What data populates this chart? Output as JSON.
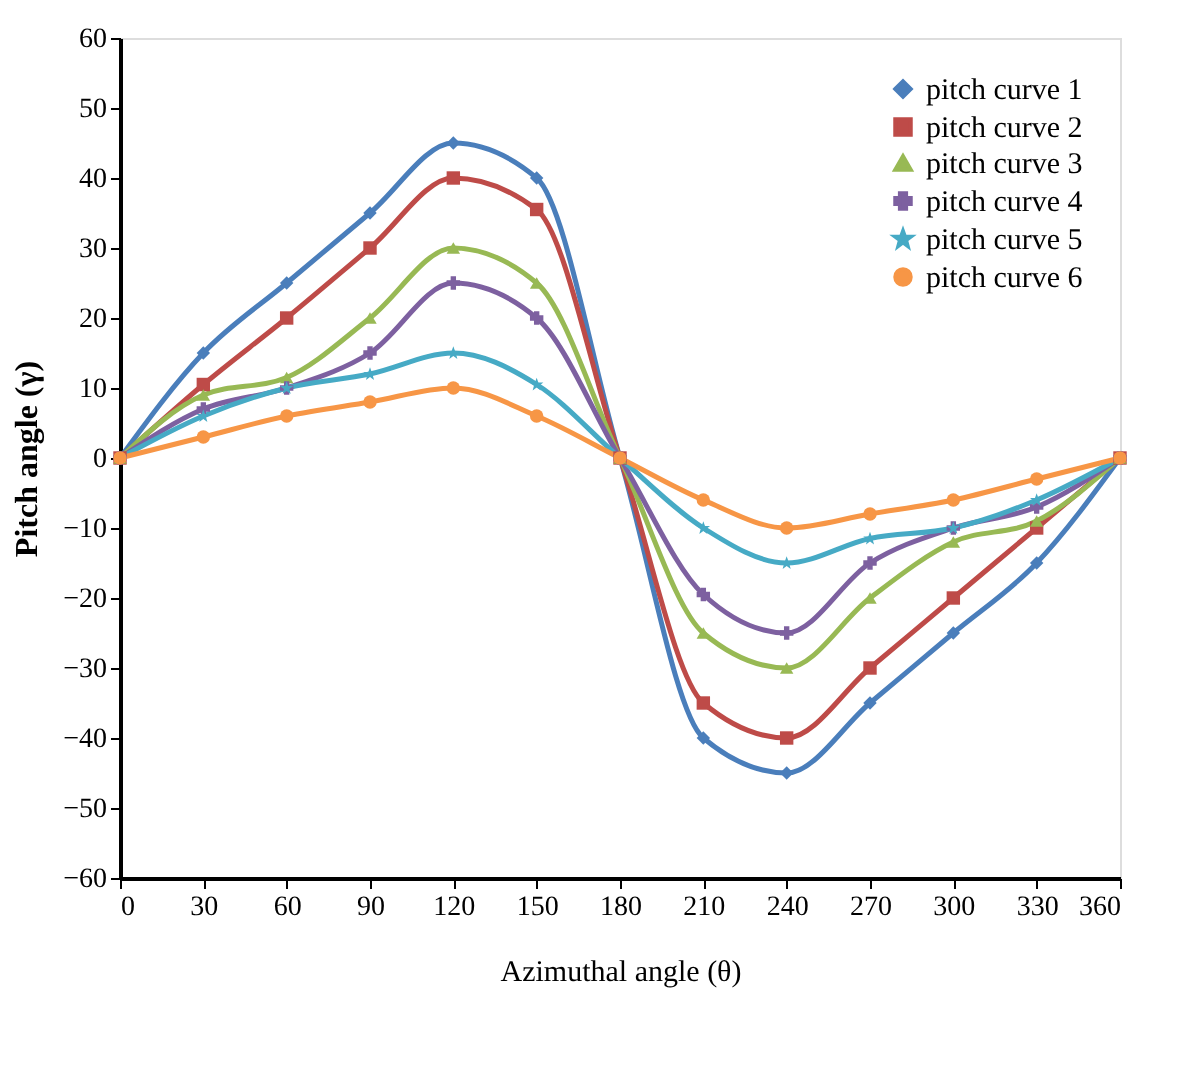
{
  "chart_data": {
    "type": "line",
    "xlabel": "Azimuthal angle (θ)",
    "ylabel": "Pitch angle (γ)",
    "x": [
      0,
      30,
      60,
      90,
      120,
      150,
      180,
      210,
      240,
      270,
      300,
      330,
      360
    ],
    "series": [
      {
        "name": "pitch curve 1",
        "color": "#4a7ebb",
        "marker": "diamond",
        "values": [
          0,
          15,
          25,
          35,
          45,
          40,
          0,
          -40,
          -45,
          -35,
          -25,
          -15,
          0
        ]
      },
      {
        "name": "pitch curve 2",
        "color": "#be4b48",
        "marker": "square",
        "values": [
          0,
          10.5,
          20,
          30,
          40,
          35.5,
          0,
          -35,
          -40,
          -30,
          -20,
          -10,
          0
        ]
      },
      {
        "name": "pitch curve 3",
        "color": "#98b954",
        "marker": "triangle",
        "values": [
          0,
          9,
          11.5,
          20,
          30,
          25,
          0,
          -25,
          -30,
          -20,
          -12,
          -9,
          0
        ]
      },
      {
        "name": "pitch curve 4",
        "color": "#7d60a0",
        "marker": "cross",
        "values": [
          0,
          7,
          10,
          15,
          25,
          20,
          0,
          -19.5,
          -25,
          -15,
          -10,
          -7,
          0
        ]
      },
      {
        "name": "pitch curve 5",
        "color": "#46aac5",
        "marker": "star",
        "values": [
          0,
          6,
          10,
          12,
          15,
          10.5,
          0,
          -10,
          -15,
          -11.5,
          -10,
          -6,
          0
        ]
      },
      {
        "name": "pitch curve 6",
        "color": "#f79646",
        "marker": "circle",
        "values": [
          0,
          3,
          6,
          8,
          10,
          6,
          0,
          -6,
          -10,
          -8,
          -6,
          -3,
          0
        ]
      }
    ],
    "xlim": [
      0,
      360
    ],
    "xticks": [
      0,
      30,
      60,
      90,
      120,
      150,
      180,
      210,
      240,
      270,
      300,
      330,
      360
    ],
    "ylim": [
      -60,
      60
    ],
    "yticks": [
      -60,
      -50,
      -40,
      -30,
      -20,
      -10,
      0,
      10,
      20,
      30,
      40,
      50,
      60
    ],
    "legend": "top right",
    "grid": false,
    "line_style": "solid"
  }
}
